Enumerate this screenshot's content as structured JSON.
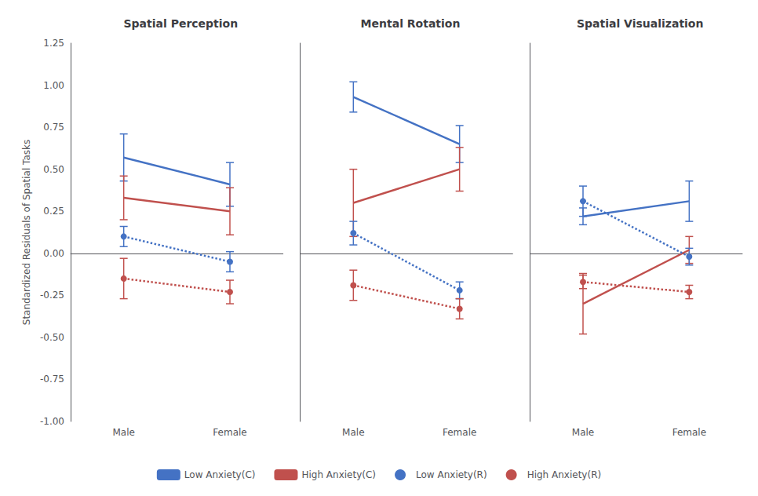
{
  "chart_data": [
    {
      "type": "line",
      "title": "Spatial Perception",
      "categories": [
        "Male",
        "Female"
      ],
      "ylabel": "Standardized Residuals of Spatial Tasks",
      "ylim": [
        -1.0,
        1.25
      ],
      "yticks": [
        {
          "value": -1.0,
          "label": "-1.00"
        },
        -0.75,
        {
          "value": -0.5,
          "label": "-0.50"
        },
        -0.25,
        {
          "value": 0.0,
          "label": "0.00"
        },
        0.25,
        {
          "value": 0.5,
          "label": "0.50"
        },
        0.75,
        {
          "value": 1.0,
          "label": "1.00"
        },
        1.25
      ],
      "grid": false,
      "legend": "bottom",
      "series": [
        {
          "name": "Low Anxiety(C)",
          "color": "#4472C4",
          "line_style": "solid",
          "marker": "none",
          "values": [
            0.57,
            0.41
          ],
          "errors": [
            0.14,
            0.13
          ]
        },
        {
          "name": "High Anxiety(C)",
          "color": "#C0504D",
          "line_style": "solid",
          "marker": "none",
          "values": [
            0.33,
            0.25
          ],
          "errors": [
            0.13,
            0.14
          ]
        },
        {
          "name": "Low Anxiety(R)",
          "color": "#4472C4",
          "line_style": "dotted",
          "marker": "circle",
          "values": [
            0.1,
            -0.05
          ],
          "errors": [
            0.06,
            0.06
          ]
        },
        {
          "name": "High Anxiety(R)",
          "color": "#C0504D",
          "line_style": "dotted",
          "marker": "circle",
          "values": [
            -0.15,
            -0.23
          ],
          "errors": [
            0.12,
            0.07
          ]
        }
      ]
    },
    {
      "type": "line",
      "title": "Mental Rotation",
      "categories": [
        "Male",
        "Female"
      ],
      "ylim": [
        -1.0,
        1.25
      ],
      "yticks": [
        {
          "value": -1.0,
          "label": "-1.00"
        },
        -0.75,
        {
          "value": -0.5,
          "label": "-0.50"
        },
        -0.25,
        {
          "value": 0.0,
          "label": "0.00"
        },
        0.25,
        {
          "value": 0.5,
          "label": "0.50"
        },
        0.75,
        {
          "value": 1.0,
          "label": "1.00"
        },
        1.25
      ],
      "tick_labels": "x",
      "grid": false,
      "legend": "bottom",
      "series": [
        {
          "name": "Low Anxiety(C)",
          "color": "#4472C4",
          "line_style": "solid",
          "marker": "none",
          "values": [
            0.93,
            0.65
          ],
          "errors": [
            0.09,
            0.11
          ]
        },
        {
          "name": "High Anxiety(C)",
          "color": "#C0504D",
          "line_style": "solid",
          "marker": "none",
          "values": [
            0.3,
            0.5
          ],
          "errors": [
            0.2,
            0.13
          ]
        },
        {
          "name": "Low Anxiety(R)",
          "color": "#4472C4",
          "line_style": "dotted",
          "marker": "circle",
          "values": [
            0.12,
            -0.22
          ],
          "errors": [
            0.07,
            0.05
          ]
        },
        {
          "name": "High Anxiety(R)",
          "color": "#C0504D",
          "line_style": "dotted",
          "marker": "circle",
          "values": [
            -0.19,
            -0.33
          ],
          "errors": [
            0.09,
            0.06
          ]
        }
      ]
    },
    {
      "type": "line",
      "title": "Spatial Visualization",
      "categories": [
        "Male",
        "Female"
      ],
      "ylim": [
        -1.0,
        1.25
      ],
      "yticks": [
        {
          "value": -1.0,
          "label": "-1.00"
        },
        -0.75,
        {
          "value": -0.5,
          "label": "-0.50"
        },
        -0.25,
        {
          "value": 0.0,
          "label": "0.00"
        },
        0.25,
        {
          "value": 0.5,
          "label": "0.50"
        },
        0.75,
        {
          "value": 1.0,
          "label": "1.00"
        },
        1.25
      ],
      "tick_labels": "x",
      "grid": false,
      "legend": "bottom",
      "series": [
        {
          "name": "Low Anxiety(C)",
          "color": "#4472C4",
          "line_style": "solid",
          "marker": "none",
          "values": [
            0.22,
            0.31
          ],
          "errors": [
            0.05,
            0.12
          ]
        },
        {
          "name": "High Anxiety(C)",
          "color": "#C0504D",
          "line_style": "solid",
          "marker": "none",
          "values": [
            -0.3,
            0.02
          ],
          "errors": [
            0.18,
            0.08
          ]
        },
        {
          "name": "Low Anxiety(R)",
          "color": "#4472C4",
          "line_style": "dotted",
          "marker": "circle",
          "values": [
            0.31,
            -0.02
          ],
          "errors": [
            0.09,
            0.05
          ]
        },
        {
          "name": "High Anxiety(R)",
          "color": "#C0504D",
          "line_style": "dotted",
          "marker": "circle",
          "values": [
            -0.17,
            -0.23
          ],
          "errors": [
            0.04,
            0.04
          ]
        }
      ]
    }
  ]
}
